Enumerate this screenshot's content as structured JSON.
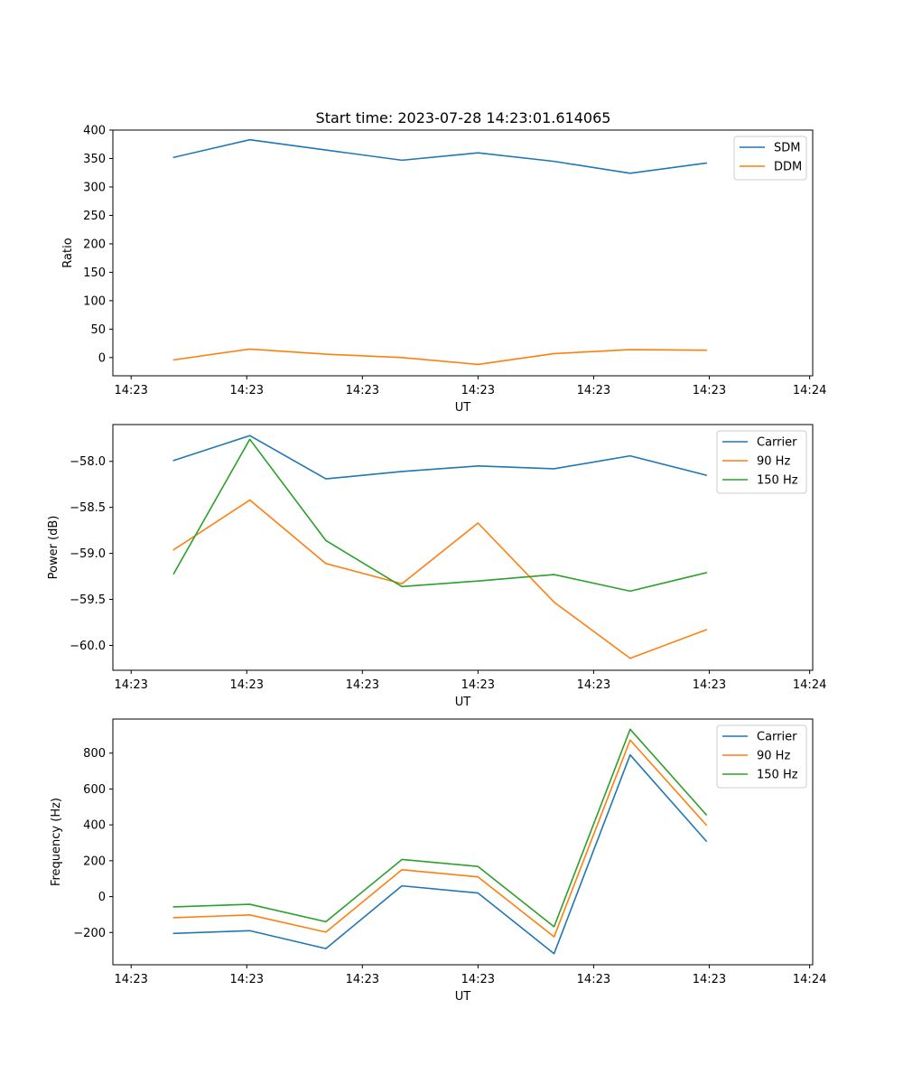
{
  "title": "Start time: 2023-07-28 14:23:01.614065",
  "colors": {
    "blue": "#1f77b4",
    "orange": "#ff7f0e",
    "green": "#2ca02c"
  },
  "chart_data": [
    {
      "type": "line",
      "title": "Start time: 2023-07-28 14:23:01.614065",
      "xlabel": "UT",
      "ylabel": "Ratio",
      "x": [
        1,
        2,
        3,
        4,
        5,
        6,
        7,
        8
      ],
      "xlim": [
        0.2,
        9.4
      ],
      "ylim": [
        -32,
        400
      ],
      "yticks": [
        0,
        50,
        100,
        150,
        200,
        250,
        300,
        350,
        400
      ],
      "xtick_positions": [
        0.44,
        1.96,
        3.48,
        5.0,
        6.52,
        8.04,
        9.36
      ],
      "xtick_labels": [
        "14:23",
        "14:23",
        "14:23",
        "14:23",
        "14:23",
        "14:23",
        "14:24"
      ],
      "legend_loc": "upper right",
      "grid": false,
      "series": [
        {
          "name": "SDM",
          "color": "#1f77b4",
          "values": [
            352,
            383,
            365,
            347,
            360,
            345,
            324,
            342
          ]
        },
        {
          "name": "DDM",
          "color": "#ff7f0e",
          "values": [
            -4,
            15,
            6,
            0,
            -12,
            7,
            14,
            13
          ]
        }
      ]
    },
    {
      "type": "line",
      "title": "",
      "xlabel": "UT",
      "ylabel": "Power (dB)",
      "x": [
        1,
        2,
        3,
        4,
        5,
        6,
        7,
        8
      ],
      "xlim": [
        0.2,
        9.4
      ],
      "ylim": [
        -60.27,
        -57.6
      ],
      "yticks": [
        -60.0,
        -59.5,
        -59.0,
        -58.5,
        -58.0
      ],
      "ytick_labels": [
        "−60.0",
        "−59.5",
        "−59.0",
        "−58.5",
        "−58.0"
      ],
      "xtick_positions": [
        0.44,
        1.96,
        3.48,
        5.0,
        6.52,
        8.04,
        9.36
      ],
      "xtick_labels": [
        "14:23",
        "14:23",
        "14:23",
        "14:23",
        "14:23",
        "14:23",
        "14:24"
      ],
      "legend_loc": "upper right",
      "grid": false,
      "series": [
        {
          "name": "Carrier",
          "color": "#1f77b4",
          "values": [
            -57.99,
            -57.72,
            -58.19,
            -58.11,
            -58.05,
            -58.08,
            -57.94,
            -58.15
          ]
        },
        {
          "name": "90 Hz",
          "color": "#ff7f0e",
          "values": [
            -58.96,
            -58.42,
            -59.11,
            -59.33,
            -58.67,
            -59.53,
            -60.14,
            -59.83
          ]
        },
        {
          "name": "150 Hz",
          "color": "#2ca02c",
          "values": [
            -59.22,
            -57.76,
            -58.86,
            -59.36,
            -59.3,
            -59.23,
            -59.41,
            -59.21
          ]
        }
      ]
    },
    {
      "type": "line",
      "title": "",
      "xlabel": "UT",
      "ylabel": "Frequency (Hz)",
      "x": [
        1,
        2,
        3,
        4,
        5,
        6,
        7,
        8
      ],
      "xlim": [
        0.2,
        9.4
      ],
      "ylim": [
        -380,
        990
      ],
      "yticks": [
        -200,
        0,
        200,
        400,
        600,
        800
      ],
      "ytick_labels": [
        "−200",
        "0",
        "200",
        "400",
        "600",
        "800"
      ],
      "xtick_positions": [
        0.44,
        1.96,
        3.48,
        5.0,
        6.52,
        8.04,
        9.36
      ],
      "xtick_labels": [
        "14:23",
        "14:23",
        "14:23",
        "14:23",
        "14:23",
        "14:23",
        "14:24"
      ],
      "legend_loc": "upper right",
      "grid": false,
      "series": [
        {
          "name": "Carrier",
          "color": "#1f77b4",
          "values": [
            -205,
            -190,
            -290,
            60,
            20,
            -318,
            790,
            310
          ]
        },
        {
          "name": "90 Hz",
          "color": "#ff7f0e",
          "values": [
            -118,
            -102,
            -198,
            150,
            110,
            -224,
            873,
            400
          ]
        },
        {
          "name": "150 Hz",
          "color": "#2ca02c",
          "values": [
            -57,
            -43,
            -140,
            207,
            168,
            -168,
            933,
            457
          ]
        }
      ]
    }
  ]
}
